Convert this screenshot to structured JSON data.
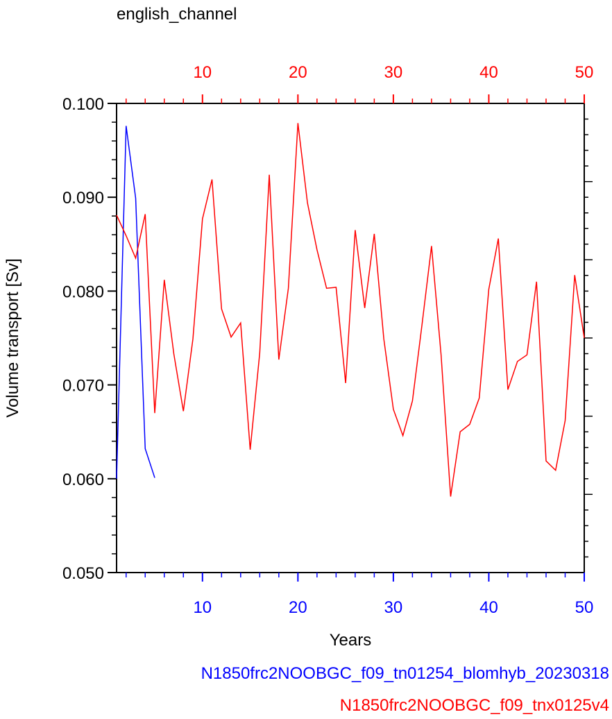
{
  "chart_data": {
    "type": "line",
    "title": "english_channel",
    "x_label": "Years",
    "y_label": "Volume transport [Sv]",
    "x": [
      1,
      2,
      3,
      4,
      5,
      6,
      7,
      8,
      9,
      10,
      11,
      12,
      13,
      14,
      15,
      16,
      17,
      18,
      19,
      20,
      21,
      22,
      23,
      24,
      25,
      26,
      27,
      28,
      29,
      30,
      31,
      32,
      33,
      34,
      35,
      36,
      37,
      38,
      39,
      40,
      41,
      42,
      43,
      44,
      45,
      46,
      47,
      48,
      49,
      50
    ],
    "series": [
      {
        "name": "N1850frc2NOOBGC_f09_tn01254_blomhyb_20230318",
        "color": "#0000ff",
        "values": [
          0.06,
          0.0976,
          0.0899,
          0.0632,
          0.0601,
          null,
          null,
          null,
          null,
          null,
          null,
          null,
          null,
          null,
          null,
          null,
          null,
          null,
          null,
          null,
          null,
          null,
          null,
          null,
          null,
          null,
          null,
          null,
          null,
          null,
          null,
          null,
          null,
          null,
          null,
          null,
          null,
          null,
          null,
          null,
          null,
          null,
          null,
          null,
          null,
          null,
          null,
          null,
          null,
          null
        ]
      },
      {
        "name": "N1850frc2NOOBGC_f09_tnx0125v4",
        "color": "#ff0000",
        "values": [
          0.0881,
          0.0859,
          0.0835,
          0.0882,
          0.067,
          0.0812,
          0.0733,
          0.0672,
          0.0749,
          0.0877,
          0.0919,
          0.0781,
          0.0751,
          0.0766,
          0.0631,
          0.0734,
          0.0924,
          0.0727,
          0.0803,
          0.0979,
          0.0894,
          0.0844,
          0.0803,
          0.0804,
          0.0702,
          0.0865,
          0.0782,
          0.0861,
          0.0749,
          0.0674,
          0.0646,
          0.0683,
          0.0764,
          0.0848,
          0.0732,
          0.0581,
          0.065,
          0.0658,
          0.0686,
          0.0802,
          0.0856,
          0.0695,
          0.0725,
          0.0732,
          0.081,
          0.0619,
          0.0609,
          0.0662,
          0.0817,
          0.075
        ]
      }
    ],
    "xlim": [
      1,
      50
    ],
    "xticks": [
      10,
      20,
      30,
      40,
      50
    ],
    "ylim": [
      0.05,
      0.1
    ],
    "yticks": [
      {
        "value": 0.05,
        "label": "0.050"
      },
      {
        "value": 0.06,
        "label": "0.060"
      },
      {
        "value": 0.07,
        "label": "0.070"
      },
      {
        "value": 0.08,
        "label": "0.080"
      },
      {
        "value": 0.09,
        "label": "0.090"
      },
      {
        "value": 0.1,
        "label": "0.100"
      }
    ]
  }
}
